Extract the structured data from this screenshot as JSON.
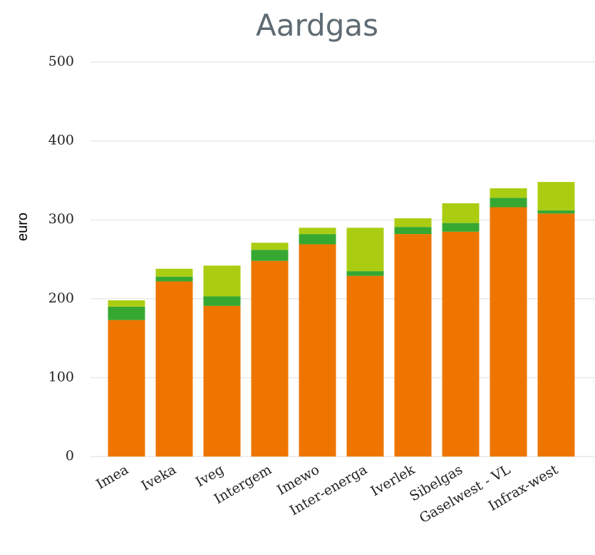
{
  "chart_data": {
    "type": "stacked_bar",
    "title": "Aardgas",
    "y_label": "euro",
    "categories": [
      "Imea",
      "Iveka",
      "Iveg",
      "Intergem",
      "Imewo",
      "Inter-energa",
      "Iverlek",
      "Sibelgas",
      "Gaselwest - VL",
      "Infrax-west"
    ],
    "series": [
      {
        "color": "#ee7600",
        "values": [
          173,
          222,
          191,
          248,
          269,
          229,
          282,
          285,
          316,
          308
        ]
      },
      {
        "color": "#36a832",
        "values": [
          17,
          6,
          12,
          14,
          13,
          6,
          9,
          11,
          12,
          4
        ]
      },
      {
        "color": "#aacd12",
        "values": [
          8,
          10,
          39,
          9,
          8,
          55,
          11,
          25,
          12,
          36
        ]
      }
    ],
    "ylim": [
      0,
      500
    ],
    "yticks": [
      0,
      100,
      200,
      300,
      400,
      500
    ],
    "grid": true
  }
}
